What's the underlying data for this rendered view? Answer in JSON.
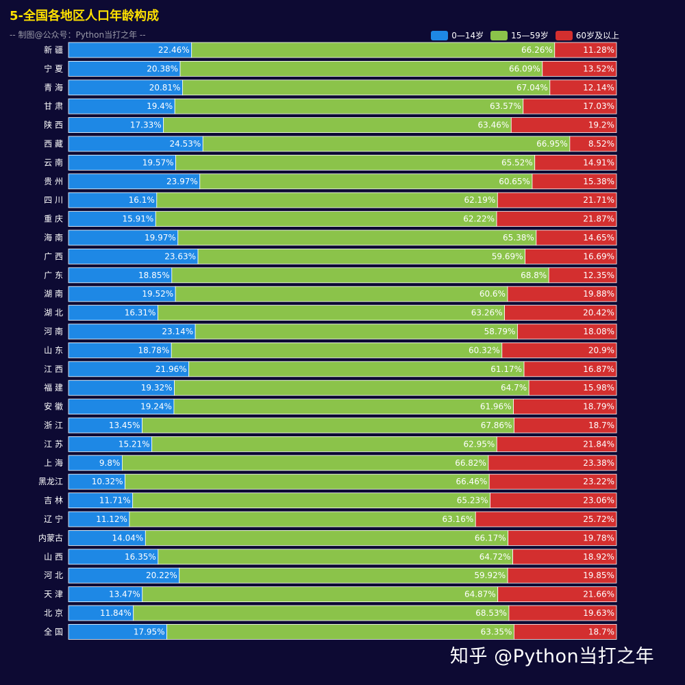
{
  "title": "5-全国各地区人口年龄构成",
  "subtitle": "-- 制图@公众号：Python当打之年 --",
  "watermark": "知乎 @Python当打之年",
  "chart_data": {
    "type": "bar",
    "orientation": "horizontal",
    "stacked": true,
    "unit": "%",
    "xlim": [
      0,
      100
    ],
    "legend_position": "top-right",
    "categories": [
      "新 疆",
      "宁 夏",
      "青 海",
      "甘 肃",
      "陕 西",
      "西 藏",
      "云 南",
      "贵 州",
      "四 川",
      "重 庆",
      "海 南",
      "广 西",
      "广 东",
      "湖 南",
      "湖 北",
      "河 南",
      "山 东",
      "江 西",
      "福 建",
      "安 徽",
      "浙 江",
      "江 苏",
      "上 海",
      "黑龙江",
      "吉 林",
      "辽 宁",
      "内蒙古",
      "山 西",
      "河 北",
      "天 津",
      "北 京",
      "全 国"
    ],
    "series": [
      {
        "name": "0—14岁",
        "color": "#1e88e5",
        "values": [
          22.46,
          20.38,
          20.81,
          19.4,
          17.33,
          24.53,
          19.57,
          23.97,
          16.1,
          15.91,
          19.97,
          23.63,
          18.85,
          19.52,
          16.31,
          23.14,
          18.78,
          21.96,
          19.32,
          19.24,
          13.45,
          15.21,
          9.8,
          10.32,
          11.71,
          11.12,
          14.04,
          16.35,
          20.22,
          13.47,
          11.84,
          17.95
        ]
      },
      {
        "name": "15—59岁",
        "color": "#8bc34a",
        "values": [
          66.26,
          66.09,
          67.04,
          63.57,
          63.46,
          66.95,
          65.52,
          60.65,
          62.19,
          62.22,
          65.38,
          59.69,
          68.8,
          60.6,
          63.26,
          58.79,
          60.32,
          61.17,
          64.7,
          61.96,
          67.86,
          62.95,
          66.82,
          66.46,
          65.23,
          63.16,
          66.17,
          64.72,
          59.92,
          64.87,
          68.53,
          63.35
        ]
      },
      {
        "name": "60岁及以上",
        "color": "#d32f2f",
        "values": [
          11.28,
          13.52,
          12.14,
          17.03,
          19.2,
          8.52,
          14.91,
          15.38,
          21.71,
          21.87,
          14.65,
          16.69,
          12.35,
          19.88,
          20.42,
          18.08,
          20.9,
          16.87,
          15.98,
          18.79,
          18.7,
          21.84,
          23.38,
          23.22,
          23.06,
          25.72,
          19.78,
          18.92,
          19.85,
          21.66,
          19.63,
          18.7
        ]
      }
    ]
  }
}
